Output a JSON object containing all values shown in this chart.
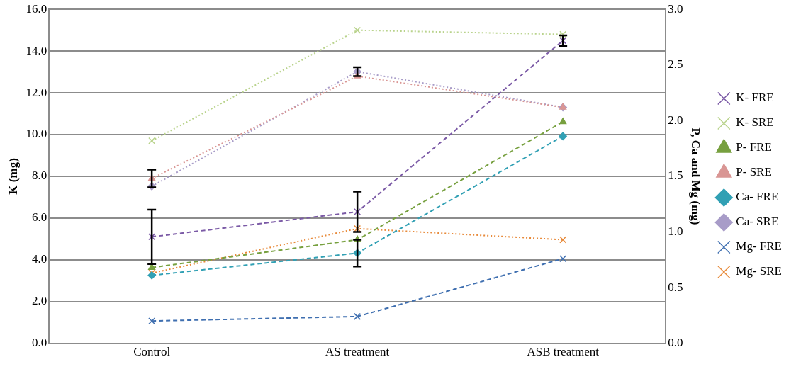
{
  "chart_data": {
    "type": "line",
    "ylabel": "K (mg)",
    "y2label": "P, Ca and Mg (mg)",
    "categories": [
      "Control",
      "AS treatment",
      "ASB treatment"
    ],
    "ylim": [
      0,
      16
    ],
    "yticks": [
      {
        "value": 0,
        "label": "0.0"
      },
      {
        "value": 2,
        "label": "2.0"
      },
      {
        "value": 4,
        "label": "4.0"
      },
      {
        "value": 6,
        "label": "6.0"
      },
      {
        "value": 8,
        "label": "8.0"
      },
      {
        "value": 10,
        "label": "10.0"
      },
      {
        "value": 12,
        "label": "12.0"
      },
      {
        "value": 14,
        "label": "14.0"
      },
      {
        "value": 16,
        "label": "16.0"
      }
    ],
    "y2lim": [
      0,
      3
    ],
    "y2ticks": [
      {
        "value": 0,
        "label": "0.0"
      },
      {
        "value": 0.5,
        "label": "0.5"
      },
      {
        "value": 1,
        "label": "1.0"
      },
      {
        "value": 1.5,
        "label": "1.5"
      },
      {
        "value": 2,
        "label": "2.0"
      },
      {
        "value": 2.5,
        "label": "2.5"
      },
      {
        "value": 3,
        "label": "3.0"
      }
    ],
    "grid": "y",
    "legend": "right",
    "series": [
      {
        "name": "K- FRE",
        "color": "#7b5aa6",
        "values": [
          5.1,
          6.3,
          14.5
        ],
        "errors": [
          1.3,
          0.97,
          0.25
        ],
        "marker": "cross",
        "line_style": "dashed"
      },
      {
        "name": "K- SRE",
        "color": "#b9d38c",
        "values": [
          9.7,
          15.0,
          14.8
        ],
        "marker": "cross",
        "line_style": "dotted"
      },
      {
        "name": "P- FRE",
        "color": "#77a03f",
        "values": [
          0.68,
          0.93,
          1.99
        ],
        "axis": "y2",
        "marker": "triangle",
        "line_style": "dashed"
      },
      {
        "name": "P- SRE",
        "color": "#d99694",
        "values": [
          1.48,
          2.4,
          2.12
        ],
        "errors": [
          0.08,
          null,
          null
        ],
        "axis": "y2",
        "marker": "triangle",
        "line_style": "dotted"
      },
      {
        "name": "Ca- FRE",
        "color": "#31a0b4",
        "values": [
          0.61,
          0.81,
          1.86
        ],
        "errors": [
          null,
          0.12,
          null
        ],
        "axis": "y2",
        "marker": "diamond",
        "line_style": "dashed"
      },
      {
        "name": "Ca- SRE",
        "color": "#a89cc8",
        "values": [
          1.41,
          2.44,
          2.12
        ],
        "errors": [
          null,
          0.04,
          null
        ],
        "axis": "y2",
        "marker": "diamond",
        "line_style": "dotted"
      },
      {
        "name": "Mg- FRE",
        "color": "#3f6fb0",
        "values": [
          0.2,
          0.24,
          0.76
        ],
        "axis": "y2",
        "marker": "cross",
        "line_style": "dashed"
      },
      {
        "name": "Mg- SRE",
        "color": "#e88a3a",
        "values": [
          0.63,
          1.03,
          0.93
        ],
        "axis": "y2",
        "marker": "cross",
        "line_style": "dotted"
      }
    ]
  }
}
